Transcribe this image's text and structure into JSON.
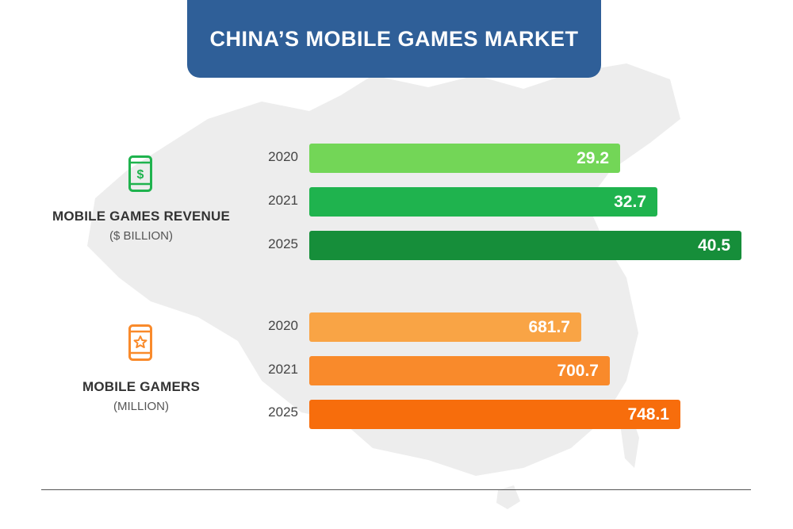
{
  "chart_data": [
    {
      "type": "bar",
      "orientation": "horizontal",
      "title": "MOBILE GAMES REVENUE",
      "unit": "($ BILLION)",
      "categories": [
        "2020",
        "2021",
        "2025"
      ],
      "values": [
        29.2,
        32.7,
        40.5
      ],
      "value_labels": [
        "29.2",
        "32.7",
        "40.5"
      ],
      "colors": [
        "#73d657",
        "#1fb34e",
        "#168e3a"
      ],
      "icon": "mobile-dollar-icon"
    },
    {
      "type": "bar",
      "orientation": "horizontal",
      "title": "MOBILE GAMERS",
      "unit": "(MILLION)",
      "categories": [
        "2020",
        "2021",
        "2025"
      ],
      "values": [
        681.7,
        700.7,
        748.1
      ],
      "value_labels": [
        "681.7",
        "700.7",
        "748.1"
      ],
      "colors": [
        "#f9a445",
        "#f98a2b",
        "#f76d0c"
      ],
      "icon": "mobile-star-icon"
    }
  ],
  "header": {
    "title": "CHINA’S MOBILE GAMES MARKET",
    "color": "#2f5f98"
  },
  "background": {
    "map": "china-map",
    "color": "#ececec"
  }
}
